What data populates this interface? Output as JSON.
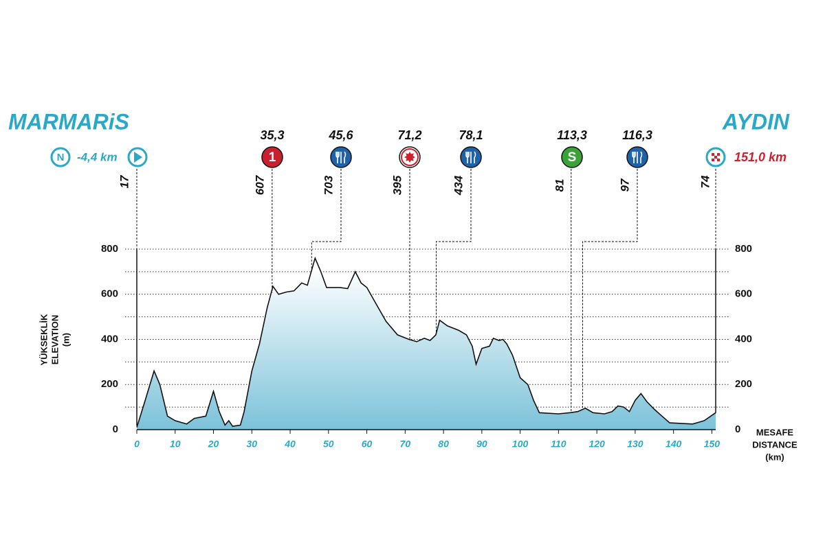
{
  "chart_data": {
    "type": "area",
    "start": {
      "name": "MARMARiS",
      "neutral": {
        "value": -4.4,
        "label": "-4,4 km"
      },
      "neutral_symbol": "N",
      "km": 0,
      "elevation": 17
    },
    "finish": {
      "name": "AYDIN",
      "distance": {
        "value": 151.0,
        "label": "151,0 km"
      },
      "km": 151,
      "elevation": 74
    },
    "y_axis_label": [
      "YÜKSEKLİK",
      "ELEVATION",
      "(m)"
    ],
    "x_axis_label": [
      "MESAFE",
      "DISTANCE",
      "(km)"
    ],
    "checkpoints": [
      {
        "km": {
          "value": 35.3,
          "label": "35,3"
        },
        "elevation": 607,
        "symbol": "1"
      },
      {
        "km": {
          "value": 45.6,
          "label": "45,6"
        },
        "elevation": 703
      },
      {
        "km": {
          "value": 71.2,
          "label": "71,2"
        },
        "elevation": 395
      },
      {
        "km": {
          "value": 78.1,
          "label": "78,1"
        },
        "elevation": 434
      },
      {
        "km": {
          "value": 113.3,
          "label": "113,3"
        },
        "elevation": 81,
        "symbol": "S"
      },
      {
        "km": {
          "value": 116.3,
          "label": "116,3"
        },
        "elevation": 97
      }
    ],
    "x": [
      0,
      2,
      4.5,
      6,
      8,
      10,
      13,
      15,
      18,
      20,
      21.5,
      23,
      24,
      25,
      27,
      28,
      30,
      32,
      34,
      35.5,
      37,
      39,
      41,
      43,
      44.5,
      46.5,
      48,
      49.5,
      53,
      55,
      57,
      58.5,
      60,
      62,
      65,
      68,
      71,
      73,
      75,
      76.5,
      78,
      79,
      81,
      84,
      86,
      87.5,
      88.5,
      90,
      92,
      93,
      94.5,
      95.5,
      96.5,
      98,
      100,
      102,
      103.5,
      105,
      110,
      113,
      115,
      117,
      119,
      122,
      124,
      125.5,
      127,
      128.5,
      130,
      131.5,
      133,
      135,
      137,
      139,
      145,
      148,
      151
    ],
    "values": [
      10,
      120,
      260,
      200,
      60,
      40,
      25,
      50,
      60,
      170,
      80,
      20,
      40,
      15,
      20,
      80,
      260,
      380,
      540,
      635,
      600,
      610,
      615,
      650,
      640,
      760,
      700,
      630,
      630,
      625,
      700,
      650,
      630,
      570,
      480,
      420,
      400,
      390,
      405,
      395,
      420,
      485,
      460,
      440,
      420,
      370,
      290,
      360,
      370,
      405,
      395,
      400,
      380,
      330,
      230,
      200,
      130,
      75,
      70,
      75,
      80,
      95,
      75,
      70,
      80,
      105,
      100,
      80,
      130,
      160,
      125,
      90,
      60,
      30,
      25,
      40,
      75
    ],
    "line_color": "#111111",
    "fill_top": "#ffffff",
    "fill_bottom": "#7cc2d9",
    "xlim": [
      0,
      151
    ],
    "xticks": [
      0,
      10,
      20,
      30,
      40,
      50,
      60,
      70,
      80,
      90,
      100,
      110,
      120,
      130,
      140,
      150
    ],
    "ylim": [
      0,
      800
    ],
    "yticks": [
      0,
      200,
      400,
      600,
      800
    ],
    "grid": true
  }
}
